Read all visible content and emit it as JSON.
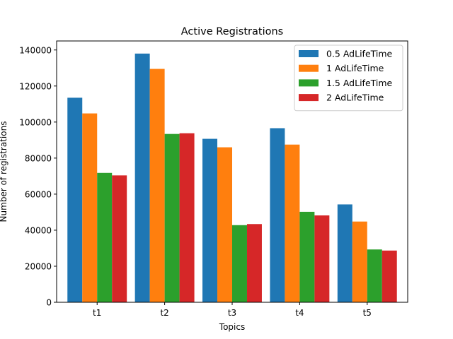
{
  "chart_data": {
    "type": "bar",
    "title": "Active Registrations",
    "xlabel": "Topics",
    "ylabel": "Number of registrations",
    "categories": [
      "t1",
      "t2",
      "t3",
      "t4",
      "t5"
    ],
    "ylim": [
      0,
      145000
    ],
    "yticks": [
      0,
      20000,
      40000,
      60000,
      80000,
      100000,
      120000,
      140000
    ],
    "grid": false,
    "legend_position": "top-right",
    "series": [
      {
        "name": "0.5 AdLifeTime",
        "color": "#1f77b4",
        "values": [
          113500,
          138000,
          90700,
          96600,
          54300
        ]
      },
      {
        "name": "1 AdLifeTime",
        "color": "#ff7f0e",
        "values": [
          104800,
          129500,
          86000,
          87500,
          44800
        ]
      },
      {
        "name": "1.5 AdLifeTime",
        "color": "#2ca02c",
        "values": [
          71800,
          93400,
          42800,
          50200,
          29300
        ]
      },
      {
        "name": "2 AdLifeTime",
        "color": "#d62728",
        "values": [
          70400,
          93800,
          43400,
          48200,
          28700
        ]
      }
    ]
  }
}
